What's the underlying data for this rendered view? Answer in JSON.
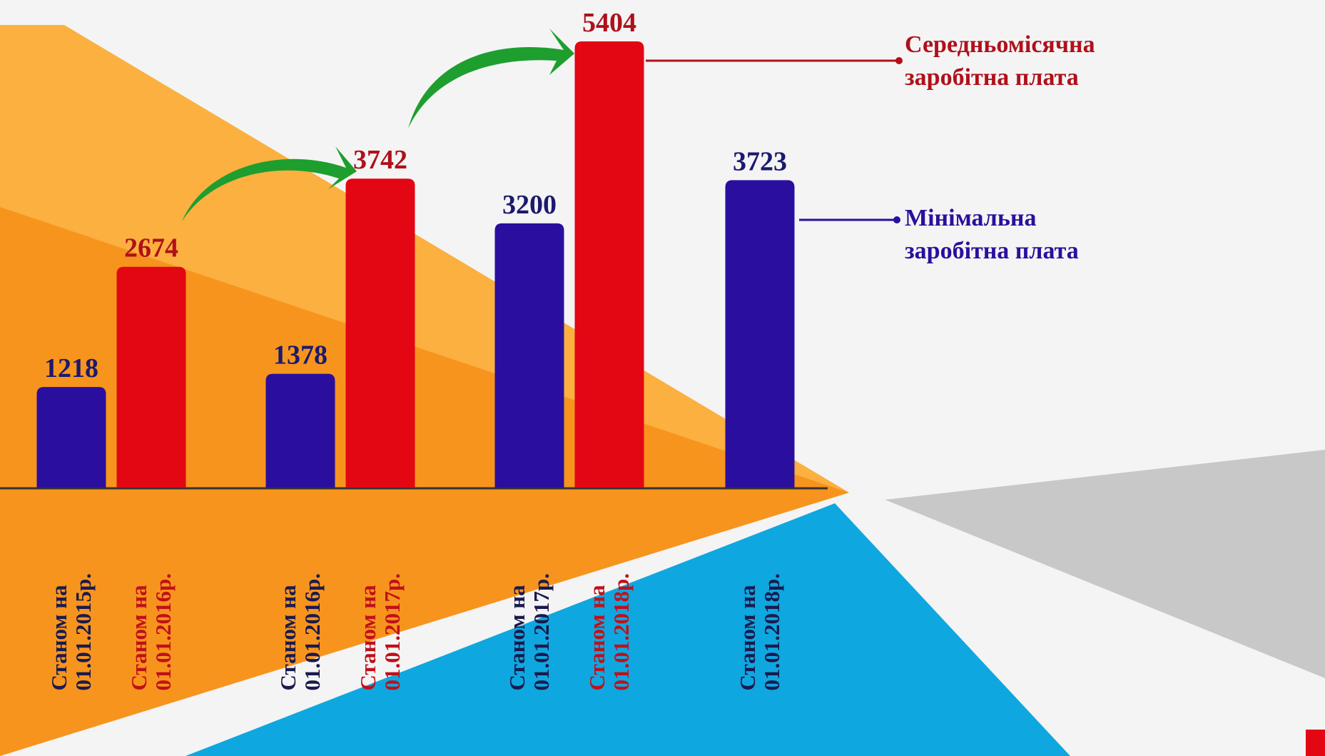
{
  "chart_data": {
    "type": "bar",
    "categories": [
      "Станом на 01.01.2015р.",
      "Станом на 01.01.2016р.",
      "Станом на 01.01.2016р.",
      "Станом на 01.01.2017р.",
      "Станом на 01.01.2017р.",
      "Станом на 01.01.2018р.",
      "Станом на 01.01.2018р."
    ],
    "series": [
      {
        "name": "Середньомісячна заробітна плата",
        "color": "#e30613",
        "values": [
          null,
          2674,
          null,
          3742,
          null,
          5404,
          null
        ]
      },
      {
        "name": "Мінімальна заробітна плата",
        "color": "#2a0f9e",
        "values": [
          1218,
          null,
          1378,
          null,
          3200,
          null,
          3723
        ]
      }
    ]
  }
}
